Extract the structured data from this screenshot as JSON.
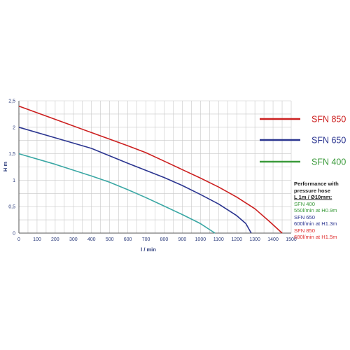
{
  "chart_data": {
    "type": "line",
    "xlabel": "l / min",
    "ylabel": "H m",
    "xlim": [
      0,
      1500
    ],
    "ylim": [
      0,
      2.5
    ],
    "x_ticks": [
      "0",
      "100",
      "200",
      "300",
      "400",
      "500",
      "600",
      "700",
      "800",
      "900",
      "1000",
      "1100",
      "1200",
      "1300",
      "1400",
      "1500"
    ],
    "y_ticks": [
      "0",
      "0,5",
      "1",
      "1,5",
      "2",
      "2,5"
    ],
    "grid": true,
    "legend_position": "right",
    "series": [
      {
        "name": "SFN 850",
        "color": "#cc1f1f",
        "points": [
          [
            0,
            2.4
          ],
          [
            200,
            2.15
          ],
          [
            400,
            1.9
          ],
          [
            600,
            1.65
          ],
          [
            700,
            1.52
          ],
          [
            800,
            1.36
          ],
          [
            900,
            1.2
          ],
          [
            1000,
            1.04
          ],
          [
            1100,
            0.87
          ],
          [
            1200,
            0.68
          ],
          [
            1300,
            0.46
          ],
          [
            1380,
            0.22
          ],
          [
            1450,
            0.0
          ]
        ]
      },
      {
        "name": "SFN 650",
        "color": "#2b3590",
        "points": [
          [
            0,
            2.0
          ],
          [
            200,
            1.8
          ],
          [
            400,
            1.6
          ],
          [
            600,
            1.32
          ],
          [
            800,
            1.05
          ],
          [
            900,
            0.9
          ],
          [
            1000,
            0.73
          ],
          [
            1100,
            0.55
          ],
          [
            1200,
            0.33
          ],
          [
            1250,
            0.18
          ],
          [
            1280,
            0.0
          ]
        ]
      },
      {
        "name": "SFN 400",
        "color": "#3aa7a4",
        "points": [
          [
            0,
            1.5
          ],
          [
            200,
            1.3
          ],
          [
            400,
            1.08
          ],
          [
            500,
            0.96
          ],
          [
            600,
            0.82
          ],
          [
            700,
            0.67
          ],
          [
            800,
            0.51
          ],
          [
            900,
            0.35
          ],
          [
            1000,
            0.18
          ],
          [
            1080,
            0.0
          ]
        ]
      }
    ]
  },
  "legend": [
    {
      "label": "SFN 850",
      "color": "#cc1f1f"
    },
    {
      "label": "SFN 650",
      "color": "#2b3590"
    },
    {
      "label": "SFN 400",
      "color": "#3a9a3a"
    }
  ],
  "performance": {
    "heading1": "Performance with",
    "heading2": "pressure hose",
    "heading3": "L 1m / Ø10mm:",
    "entries": [
      {
        "model": "SFN 400",
        "rate": "550l/min at H0.9m",
        "color": "#3a9a3a"
      },
      {
        "model": "SFN 650",
        "rate": "600l/min at H1.3m",
        "color": "#2b3590"
      },
      {
        "model": "SFN 850",
        "rate": "680l/min at H1.5m",
        "color": "#e03030"
      }
    ]
  }
}
